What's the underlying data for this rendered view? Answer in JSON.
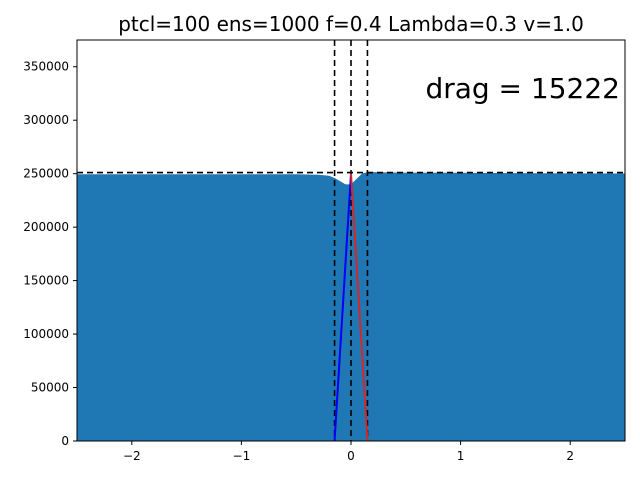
{
  "chart_data": {
    "type": "area",
    "title": "ptcl=100 ens=1000 f=0.4 Lambda=0.3 v=1.0",
    "xlabel": "",
    "ylabel": "",
    "xlim": [
      -2.5,
      2.5
    ],
    "ylim": [
      0,
      375000
    ],
    "x_ticks": [
      -2,
      -1,
      0,
      1,
      2
    ],
    "x_tick_labels": [
      "−2",
      "−1",
      "0",
      "1",
      "2"
    ],
    "y_ticks": [
      0,
      50000,
      100000,
      150000,
      200000,
      250000,
      300000,
      350000
    ],
    "y_tick_labels": [
      "0",
      "50000",
      "100000",
      "150000",
      "200000",
      "250000",
      "300000",
      "350000"
    ],
    "grid": false,
    "annotation": "drag = 15222",
    "fill_color": "#1f77b4",
    "distribution": {
      "x": [
        -2.5,
        -2.0,
        -1.5,
        -1.0,
        -0.5,
        -0.3,
        -0.2,
        -0.15,
        -0.1,
        -0.05,
        0.0,
        0.05,
        0.1,
        0.15,
        0.2,
        0.3,
        0.5,
        1.0,
        1.5,
        2.0,
        2.5
      ],
      "y": [
        249500,
        249500,
        249500,
        249500,
        249500,
        249000,
        248000,
        246000,
        243000,
        240000,
        240000,
        245000,
        250000,
        251500,
        251500,
        251200,
        251000,
        250800,
        250500,
        250300,
        250200
      ]
    },
    "reference_lines": {
      "horizontal_y": 251000,
      "vertical_x": [
        -0.15,
        0.0,
        0.15
      ],
      "style": "dashed",
      "color": "#000000"
    },
    "series": [
      {
        "color": "#0000ff",
        "x": [
          -0.15,
          0.0
        ],
        "y": [
          0,
          250000
        ]
      },
      {
        "color": "#d62728",
        "x": [
          0.0,
          0.15
        ],
        "y": [
          250000,
          0
        ]
      }
    ]
  }
}
